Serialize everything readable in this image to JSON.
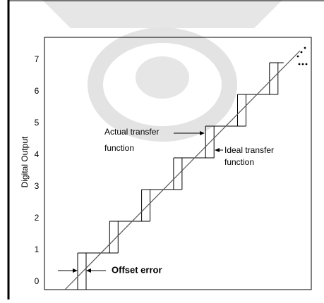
{
  "y_axis": {
    "label": "Digital Output",
    "ticks": [
      "0",
      "1",
      "2",
      "3",
      "4",
      "5",
      "6",
      "7"
    ]
  },
  "annotations": {
    "actual": [
      "Actual transfer",
      "function"
    ],
    "ideal": [
      "Ideal transfer",
      "function"
    ],
    "offset": "Offset error"
  }
}
